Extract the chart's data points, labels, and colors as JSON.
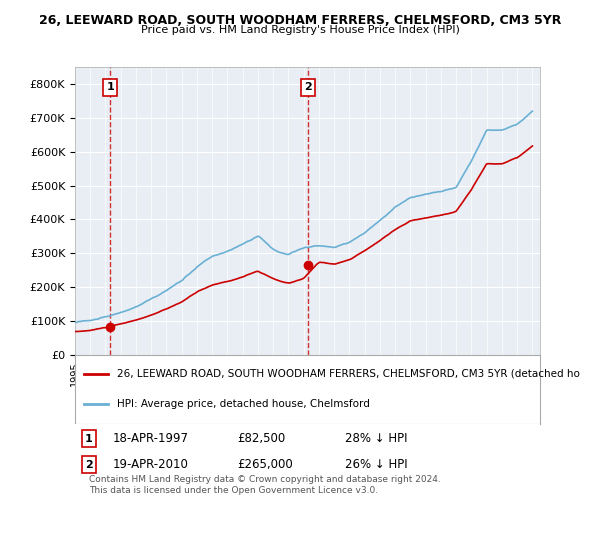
{
  "title1": "26, LEEWARD ROAD, SOUTH WOODHAM FERRERS, CHELMSFORD, CM3 5YR",
  "title2": "Price paid vs. HM Land Registry's House Price Index (HPI)",
  "legend_line1": "26, LEEWARD ROAD, SOUTH WOODHAM FERRERS, CHELMSFORD, CM3 5YR (detached ho",
  "legend_line2": "HPI: Average price, detached house, Chelmsford",
  "annotation1_label": "1",
  "annotation1_date": "18-APR-1997",
  "annotation1_price": "£82,500",
  "annotation1_hpi": "28% ↓ HPI",
  "annotation1_year": 1997.3,
  "annotation1_value": 82500,
  "annotation2_label": "2",
  "annotation2_date": "19-APR-2010",
  "annotation2_price": "£265,000",
  "annotation2_hpi": "26% ↓ HPI",
  "annotation2_year": 2010.3,
  "annotation2_value": 265000,
  "footer": "Contains HM Land Registry data © Crown copyright and database right 2024.\nThis data is licensed under the Open Government Licence v3.0.",
  "ylim": [
    0,
    850000
  ],
  "hpi_color": "#6ab0d4",
  "price_color": "#cc0000",
  "vline_color": "#cc0000",
  "background_color": "#f0f4f8",
  "plot_bg_color": "#e8eef4"
}
